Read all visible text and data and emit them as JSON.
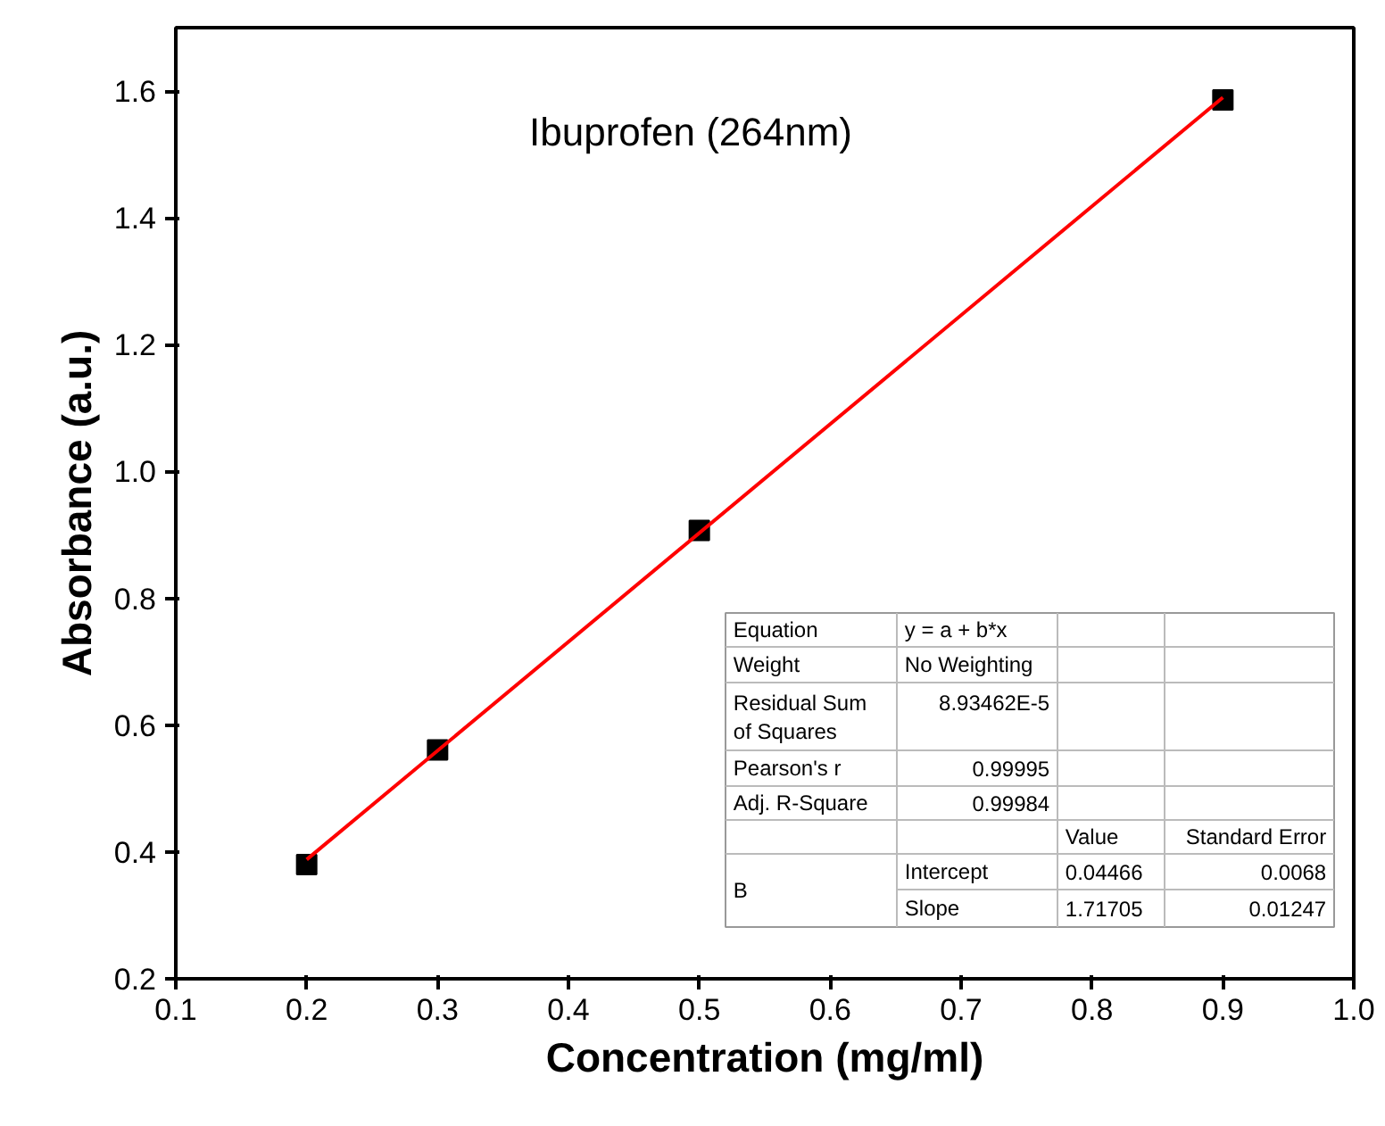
{
  "chart_data": {
    "type": "scatter",
    "xlabel": "Concentration (mg/ml)",
    "ylabel": "Absorbance (a.u.)",
    "xlim": [
      0.1,
      1.0
    ],
    "ylim": [
      0.2,
      1.7
    ],
    "xticks": [
      0.1,
      0.2,
      0.3,
      0.4,
      0.5,
      0.6,
      0.7,
      0.8,
      0.9,
      {
        "value": 1,
        "label": "1.0"
      }
    ],
    "yticks": [
      0.2,
      0.4,
      0.6,
      0.8,
      {
        "value": 1,
        "label": "1.0"
      },
      1.2,
      1.4,
      1.6
    ],
    "grid": false,
    "marker": "square",
    "series": [
      {
        "color": "#000000",
        "x": [
          0.2,
          0.3,
          0.5,
          0.9
        ],
        "values": [
          0.38,
          0.561,
          0.907,
          1.586
        ]
      },
      {
        "type": "line",
        "color": "#ff0000",
        "x": [
          0.2,
          0.9
        ],
        "values": [
          0.388,
          1.59
        ],
        "marker": "none",
        "line_style": "solid"
      }
    ],
    "annotations": [
      "Ibuprofen (264nm)",
      "Equation",
      "y = a + b*x",
      "Weight",
      "No Weighting",
      "Residual Sum\nof Squares",
      "8.93462E-5",
      "Pearson's r",
      "0.99995",
      "Adj. R-Square",
      "0.99984",
      "Value",
      "Standard Error",
      "B",
      "Intercept",
      "0.04466",
      "0.0068",
      "Slope",
      "1.71705",
      "0.01247"
    ]
  }
}
